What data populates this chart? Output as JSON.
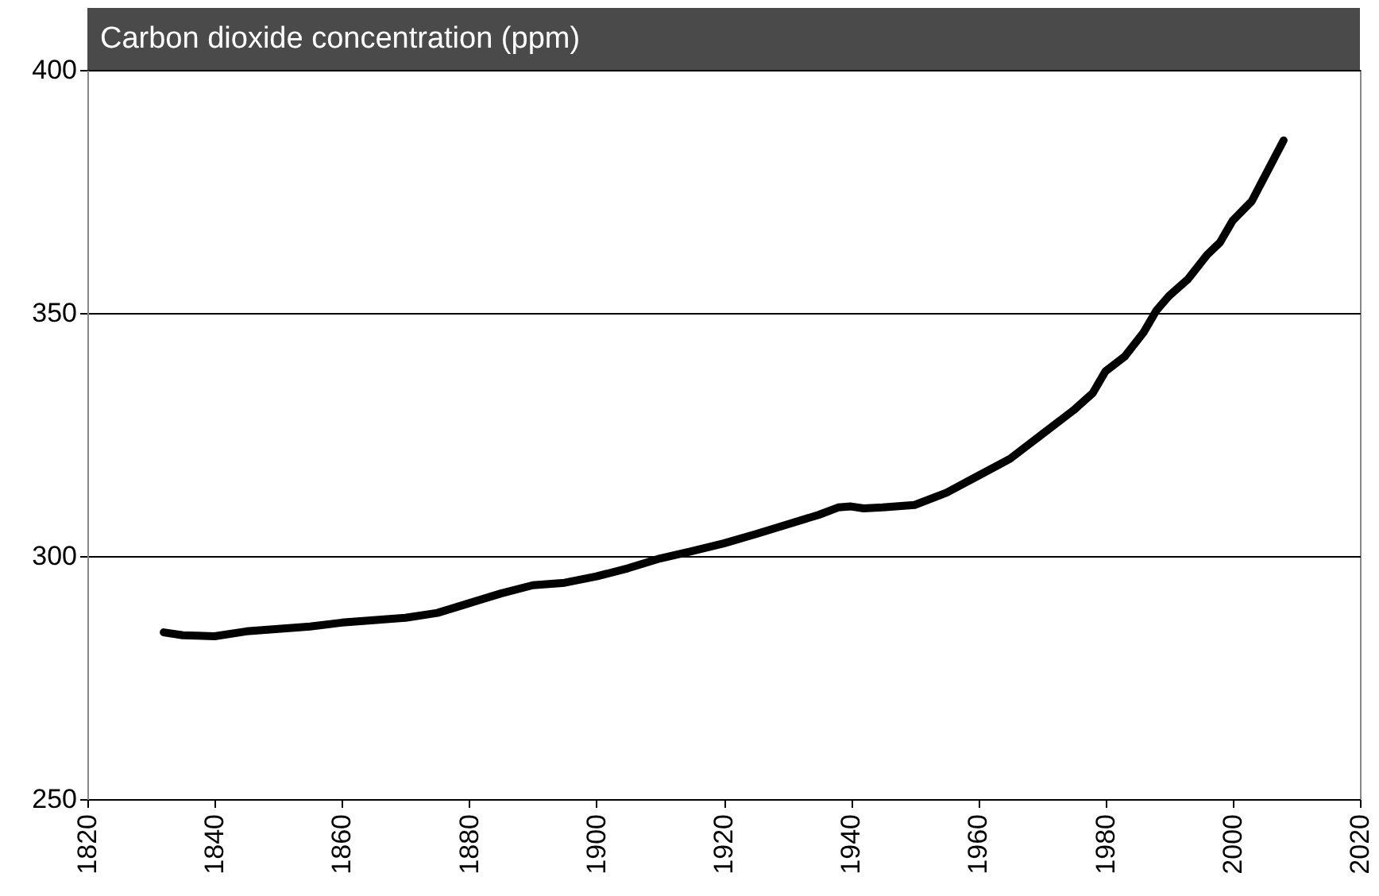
{
  "chart_data": {
    "type": "line",
    "title": "Carbon dioxide concentration (ppm)",
    "x": [
      1832,
      1835,
      1840,
      1845,
      1850,
      1855,
      1860,
      1865,
      1870,
      1875,
      1880,
      1885,
      1890,
      1895,
      1900,
      1905,
      1910,
      1915,
      1920,
      1925,
      1930,
      1935,
      1938,
      1940,
      1942,
      1945,
      1950,
      1955,
      1960,
      1965,
      1970,
      1975,
      1978,
      1980,
      1983,
      1986,
      1988,
      1990,
      1993,
      1996,
      1998,
      2000,
      2003,
      2005,
      2008
    ],
    "series": [
      {
        "color": "#000000",
        "values": [
          284.3,
          283.7,
          283.5,
          284.5,
          285,
          285.5,
          286.3,
          286.8,
          287.3,
          288.3,
          290.3,
          292.3,
          294,
          294.5,
          295.8,
          297.5,
          299.5,
          301,
          302.6,
          304.5,
          306.5,
          308.5,
          310,
          310.2,
          309.8,
          310,
          310.5,
          313,
          316.5,
          320,
          325,
          330,
          333.5,
          338,
          341,
          346,
          350.5,
          353.5,
          357,
          362,
          364.5,
          369,
          373,
          378,
          385.5
        ]
      }
    ],
    "xlim": [
      1820,
      2020
    ],
    "xticks": [
      1820,
      1840,
      1860,
      1880,
      1900,
      1920,
      1940,
      1960,
      1980,
      2000,
      2020
    ],
    "ylim": [
      250,
      400
    ],
    "yticks": [
      250,
      300,
      350,
      400
    ],
    "grid": "y",
    "line_style": "solid"
  }
}
